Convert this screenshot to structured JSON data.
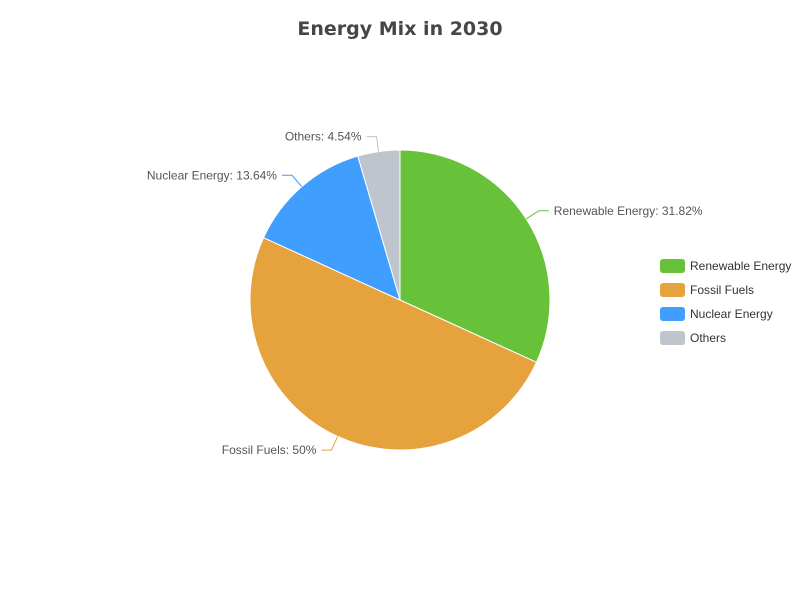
{
  "chart_data": {
    "type": "pie",
    "title": "Energy Mix in 2030",
    "slices": [
      {
        "name": "Renewable Energy",
        "value": 31.82,
        "label": "Renewable Energy: 31.82%",
        "color": "#67c23a"
      },
      {
        "name": "Fossil Fuels",
        "value": 50,
        "label": "Fossil Fuels: 50%",
        "color": "#e6a23c"
      },
      {
        "name": "Nuclear Energy",
        "value": 13.64,
        "label": "Nuclear Energy: 13.64%",
        "color": "#409eff"
      },
      {
        "name": "Others",
        "value": 4.54,
        "label": "Others: 4.54%",
        "color": "#c0c4cc"
      }
    ],
    "legend_position": "right"
  }
}
